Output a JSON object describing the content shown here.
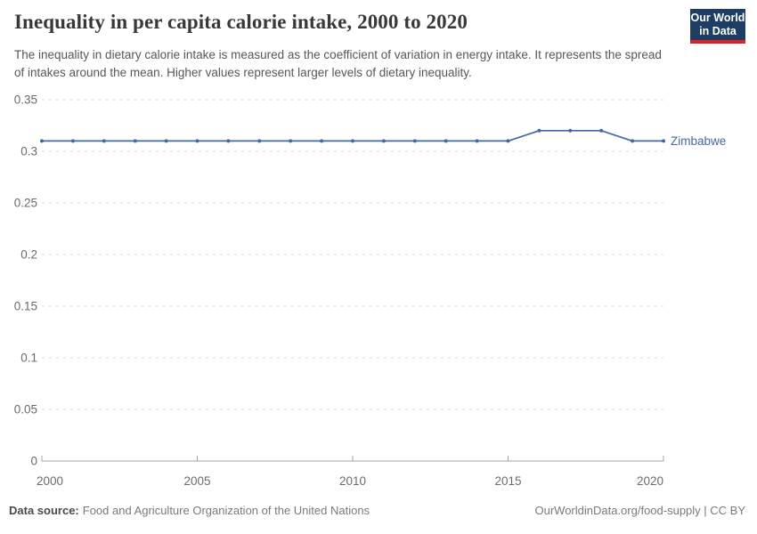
{
  "header": {
    "title": "Inequality in per capita calorie intake, 2000 to 2020",
    "subtitle": "The inequality in dietary calorie intake is measured as the coefficient of variation in energy intake. It represents the spread of intakes around the mean. Higher values represent larger levels of dietary inequality."
  },
  "logo": {
    "line1": "Our World",
    "line2": "in Data",
    "bg_color": "#1d3d63",
    "bar_color": "#dc2227"
  },
  "chart_data": {
    "type": "line",
    "title": "Inequality in per capita calorie intake, 2000 to 2020",
    "x": [
      2000,
      2001,
      2002,
      2003,
      2004,
      2005,
      2006,
      2007,
      2008,
      2009,
      2010,
      2011,
      2012,
      2013,
      2014,
      2015,
      2016,
      2017,
      2018,
      2019,
      2020
    ],
    "series": [
      {
        "name": "Zimbabwe",
        "color": "#4569a5",
        "values": [
          0.31,
          0.31,
          0.31,
          0.31,
          0.31,
          0.31,
          0.31,
          0.31,
          0.31,
          0.31,
          0.31,
          0.31,
          0.31,
          0.31,
          0.31,
          0.31,
          0.32,
          0.32,
          0.32,
          0.31,
          0.31
        ]
      }
    ],
    "xlabel": "",
    "ylabel": "",
    "xlim": [
      2000,
      2020
    ],
    "ylim": [
      0,
      0.35
    ],
    "x_ticks": [
      2000,
      2005,
      2010,
      2015,
      2020
    ],
    "y_ticks": [
      0,
      0.05,
      0.1,
      0.15,
      0.2,
      0.25,
      0.3,
      0.35
    ],
    "grid": "horizontal-dashed",
    "grid_color": "#dcdcdc",
    "axis_color": "#a5a5a5",
    "tick_label_color": "#6b6b6b",
    "legend_position": "end-of-line"
  },
  "footer": {
    "source_label": "Data source:",
    "source_text": "Food and Agriculture Organization of the United Nations",
    "credit": "OurWorldinData.org/food-supply | CC BY"
  }
}
